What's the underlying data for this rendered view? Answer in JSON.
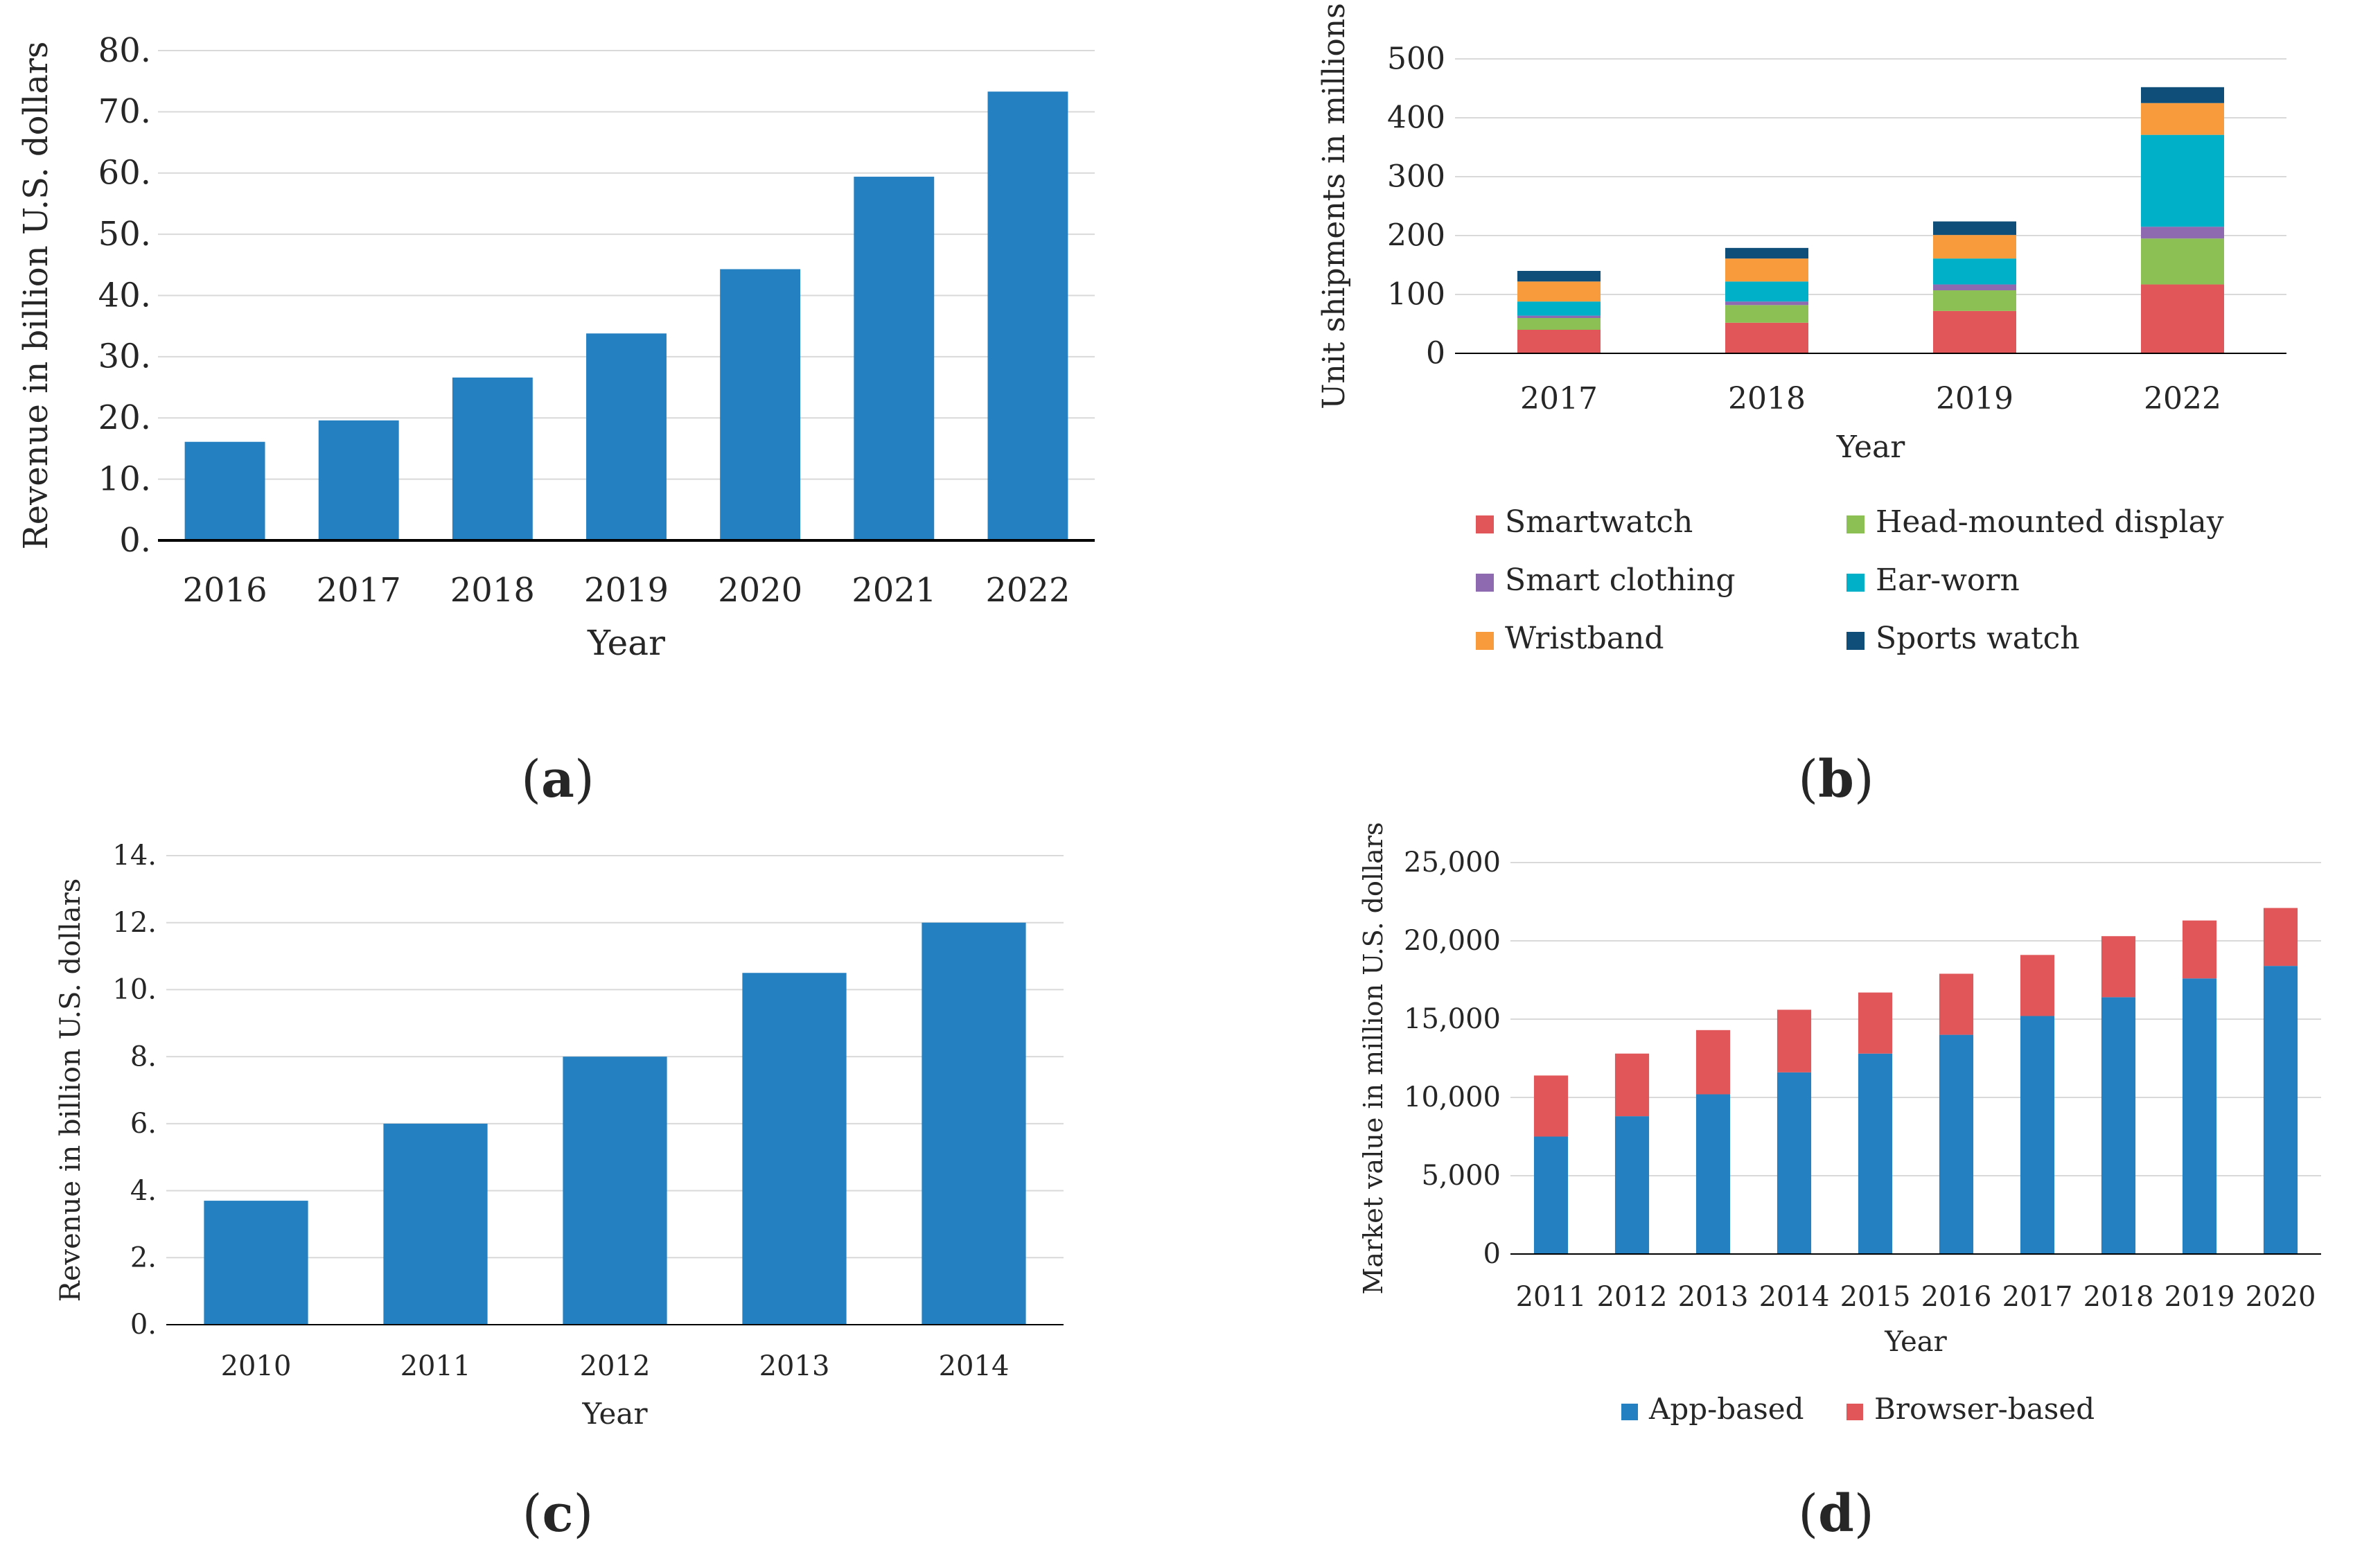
{
  "colors": {
    "blue": "#2580C2",
    "grid": "#D9D9D9",
    "axis": "#000000",
    "smartwatch": "#E15759",
    "head_mounted": "#8CBF54",
    "smart_clothing": "#8E6BB0",
    "ear_worn": "#00B0C8",
    "wristband": "#F89B3C",
    "sports_watch": "#0E4E78",
    "app_based": "#2580C2",
    "browser_based": "#E15759"
  },
  "panels": {
    "a": {
      "caption_open": "(",
      "caption_letter": "a",
      "caption_close": ")"
    },
    "b": {
      "caption_open": "(",
      "caption_letter": "b",
      "caption_close": ")"
    },
    "c": {
      "caption_open": "(",
      "caption_letter": "c",
      "caption_close": ")"
    },
    "d": {
      "caption_open": "(",
      "caption_letter": "d",
      "caption_close": ")"
    }
  },
  "chart_data": [
    {
      "id": "a",
      "type": "bar",
      "title": "",
      "xlabel": "Year",
      "ylabel": "Revenue in billion U.S. dollars",
      "categories": [
        "2016",
        "2017",
        "2018",
        "2019",
        "2020",
        "2021",
        "2022"
      ],
      "values": [
        16.1,
        19.6,
        26.6,
        33.8,
        44.3,
        59.4,
        73.3
      ],
      "ylim": [
        0,
        80
      ],
      "yticks": [
        0,
        10,
        20,
        30,
        40,
        50,
        60,
        70,
        80
      ],
      "ytick_labels": [
        "0.",
        "10.",
        "20.",
        "30.",
        "40.",
        "50.",
        "60.",
        "70.",
        "80."
      ],
      "grid": true,
      "legend": null
    },
    {
      "id": "b",
      "type": "bar",
      "stacked": true,
      "title": "",
      "xlabel": "Year",
      "ylabel": "Unit shipments in millions",
      "categories": [
        "2017",
        "2018",
        "2019",
        "2022"
      ],
      "series": [
        {
          "name": "Smartwatch",
          "color_key": "smartwatch",
          "values": [
            40,
            52,
            72,
            117
          ]
        },
        {
          "name": "Head-mounted display",
          "color_key": "head_mounted",
          "values": [
            20,
            30,
            35,
            78
          ]
        },
        {
          "name": "Smart clothing",
          "color_key": "smart_clothing",
          "values": [
            4,
            6,
            10,
            20
          ]
        },
        {
          "name": "Ear-worn",
          "color_key": "ear_worn",
          "values": [
            24,
            34,
            44,
            156
          ]
        },
        {
          "name": "Wristband",
          "color_key": "wristband",
          "values": [
            34,
            39,
            40,
            54
          ]
        },
        {
          "name": "Sports watch",
          "color_key": "sports_watch",
          "values": [
            18,
            18,
            23,
            27
          ]
        }
      ],
      "ylim": [
        0,
        500
      ],
      "yticks": [
        0,
        100,
        200,
        300,
        400,
        500
      ],
      "ytick_labels": [
        "0",
        "100",
        "200",
        "300",
        "400",
        "500"
      ],
      "grid": true,
      "legend": "bottom"
    },
    {
      "id": "c",
      "type": "bar",
      "title": "",
      "xlabel": "Year",
      "ylabel": "Revenue in billion U.S. dollars",
      "categories": [
        "2010",
        "2011",
        "2012",
        "2013",
        "2014"
      ],
      "values": [
        3.7,
        6.0,
        8.0,
        10.5,
        12.0
      ],
      "ylim": [
        0,
        14
      ],
      "yticks": [
        0,
        2,
        4,
        6,
        8,
        10,
        12,
        14
      ],
      "ytick_labels": [
        "0.",
        "2.",
        "4.",
        "6.",
        "8.",
        "10.",
        "12.",
        "14."
      ],
      "grid": true,
      "legend": null
    },
    {
      "id": "d",
      "type": "bar",
      "stacked": true,
      "title": "",
      "xlabel": "Year",
      "ylabel": "Market value in million U.S. dollars",
      "categories": [
        "2011",
        "2012",
        "2013",
        "2014",
        "2015",
        "2016",
        "2017",
        "2018",
        "2019",
        "2020"
      ],
      "series": [
        {
          "name": "App-based",
          "color_key": "app_based",
          "values": [
            7500,
            8800,
            10200,
            11600,
            12800,
            14000,
            15200,
            16400,
            17600,
            18400
          ]
        },
        {
          "name": "Browser-based",
          "color_key": "browser_based",
          "values": [
            3900,
            4000,
            4100,
            4000,
            3900,
            3900,
            3900,
            3900,
            3700,
            3700
          ]
        }
      ],
      "ylim": [
        0,
        25000
      ],
      "yticks": [
        0,
        5000,
        10000,
        15000,
        20000,
        25000
      ],
      "ytick_labels": [
        "0",
        "5,000",
        "10,000",
        "15,000",
        "20,000",
        "25,000"
      ],
      "grid": true,
      "legend": "bottom"
    }
  ]
}
